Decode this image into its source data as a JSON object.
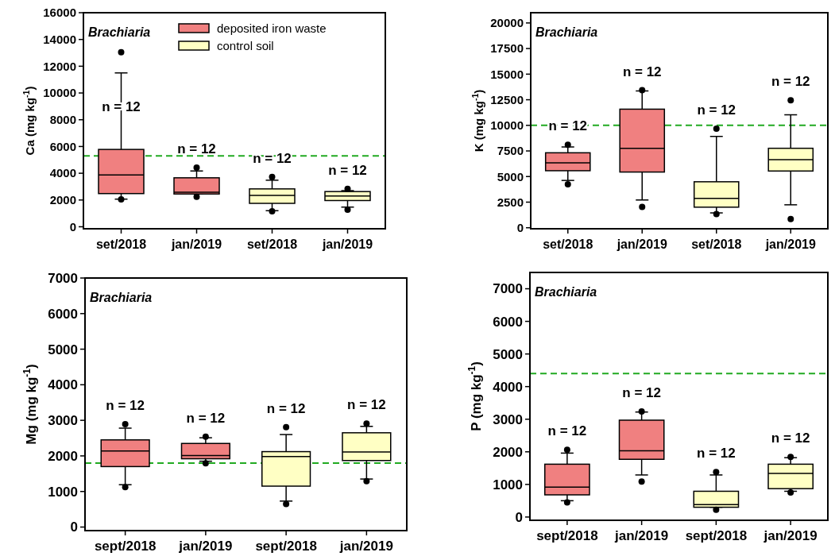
{
  "chart_data": [
    {
      "type": "box",
      "ylabel": "Ca (mg kg$^{-1}$)",
      "categories": [
        "set/2018",
        "jan/2019",
        "set/2018",
        "jan/2019"
      ],
      "ylim": [
        -150,
        16000
      ],
      "yticks": [
        0,
        2000,
        4000,
        6000,
        8000,
        10000,
        12000,
        14000,
        16000
      ],
      "legend": "top right",
      "ref_lines": [
        {
          "axis": "y",
          "value": 5300,
          "color": "#22aa22",
          "line_style": "dashed"
        }
      ],
      "annotations": [
        "Brachiaria",
        "n = 12",
        "n = 12",
        "n = 12",
        "n = 12"
      ],
      "series": [
        {
          "name": "deposited iron waste",
          "color": "#f08080",
          "boxes": [
            {
              "low": 2065,
              "q1": 2480,
              "median": 3870,
              "q3": 5780,
              "high": 11500,
              "outliers": [
                2050,
                13050
              ]
            },
            {
              "low": 2450,
              "q1": 2450,
              "median": 2580,
              "q3": 3660,
              "high": 4170,
              "outliers": [
                2240,
                4420
              ]
            },
            null,
            null
          ]
        },
        {
          "name": "control soil",
          "color": "#ffffc4",
          "boxes": [
            null,
            null,
            {
              "low": 1200,
              "q1": 1750,
              "median": 2340,
              "q3": 2830,
              "high": 3480,
              "outliers": [
                1150,
                3720
              ]
            },
            {
              "low": 1470,
              "q1": 1960,
              "median": 2300,
              "q3": 2630,
              "high": 2700,
              "outliers": [
                1270,
                2830
              ]
            }
          ]
        }
      ]
    },
    {
      "type": "box",
      "ylabel": "K (mg kg$^{-1}$)",
      "categories": [
        "set/2018",
        "jan/2019",
        "set/2018",
        "jan/2019"
      ],
      "ylim": [
        -100,
        21000
      ],
      "yticks": [
        0,
        2500,
        5000,
        7500,
        10000,
        12500,
        15000,
        17500,
        20000
      ],
      "ref_lines": [
        {
          "axis": "y",
          "value": 10000,
          "color": "#22aa22",
          "line_style": "dashed"
        }
      ],
      "annotations": [
        "Brachiaria",
        "n = 12",
        "n = 12",
        "n = 12",
        "n = 12"
      ],
      "series": [
        {
          "color": "#f08080",
          "boxes": [
            {
              "low": 4620,
              "q1": 5570,
              "median": 6340,
              "q3": 7320,
              "high": 7890,
              "outliers": [
                4250,
                8100
              ]
            },
            {
              "low": 2710,
              "q1": 5440,
              "median": 7760,
              "q3": 11580,
              "high": 13360,
              "outliers": [
                2040,
                13430
              ]
            },
            null,
            null
          ]
        },
        {
          "color": "#ffffc4",
          "boxes": [
            null,
            null,
            {
              "low": 1450,
              "q1": 2010,
              "median": 2860,
              "q3": 4490,
              "high": 8920,
              "outliers": [
                1330,
                9670
              ]
            },
            {
              "low": 2240,
              "q1": 5540,
              "median": 6650,
              "q3": 7760,
              "high": 11030,
              "outliers": [
                850,
                12450
              ]
            }
          ]
        }
      ]
    },
    {
      "type": "box",
      "ylabel": "Mg (mg kg$^{-1}$)",
      "categories": [
        "sept/2018",
        "jan/2019",
        "sept/2018",
        "jan/2019"
      ],
      "ylim": [
        -100,
        7000
      ],
      "yticks": [
        0,
        1000,
        2000,
        3000,
        4000,
        5000,
        6000,
        7000
      ],
      "ref_lines": [
        {
          "axis": "y",
          "value": 1800,
          "color": "#22aa22",
          "line_style": "dashed"
        }
      ],
      "annotations": [
        "Brachiaria",
        "n = 12",
        "n = 12",
        "n = 12",
        "n = 12"
      ],
      "series": [
        {
          "color": "#f08080",
          "boxes": [
            {
              "low": 1190,
              "q1": 1700,
              "median": 2140,
              "q3": 2450,
              "high": 2780,
              "outliers": [
                1120,
                2890
              ]
            },
            {
              "low": 1850,
              "q1": 1920,
              "median": 2010,
              "q3": 2350,
              "high": 2510,
              "outliers": [
                1790,
                2540
              ]
            },
            null,
            null
          ]
        },
        {
          "color": "#ffffc4",
          "boxes": [
            null,
            null,
            {
              "low": 730,
              "q1": 1150,
              "median": 1980,
              "q3": 2120,
              "high": 2600,
              "outliers": [
                650,
                2810
              ]
            },
            {
              "low": 1350,
              "q1": 1870,
              "median": 2110,
              "q3": 2650,
              "high": 2830,
              "outliers": [
                1290,
                2910
              ]
            }
          ]
        }
      ]
    },
    {
      "type": "box",
      "ylabel": "P (mg kg$^{-1}$)",
      "categories": [
        "sept/2018",
        "jan/2019",
        "sept/2018",
        "jan/2019"
      ],
      "ylim": [
        -100,
        7500
      ],
      "yticks": [
        0,
        1000,
        2000,
        3000,
        4000,
        5000,
        6000,
        7000
      ],
      "ref_lines": [
        {
          "axis": "y",
          "value": 4400,
          "color": "#22aa22",
          "line_style": "dashed"
        }
      ],
      "annotations": [
        "Brachiaria",
        "n = 12",
        "n = 12",
        "n = 12",
        "n = 12"
      ],
      "series": [
        {
          "color": "#f08080",
          "boxes": [
            {
              "low": 500,
              "q1": 680,
              "median": 920,
              "q3": 1620,
              "high": 1960,
              "outliers": [
                450,
                2060
              ]
            },
            {
              "low": 1290,
              "q1": 1770,
              "median": 2030,
              "q3": 2970,
              "high": 3220,
              "outliers": [
                1090,
                3240
              ]
            },
            null,
            null
          ]
        },
        {
          "color": "#ffffc4",
          "boxes": [
            null,
            null,
            {
              "low": 300,
              "q1": 300,
              "median": 380,
              "q3": 790,
              "high": 1290,
              "outliers": [
                220,
                1380
              ]
            },
            {
              "low": 790,
              "q1": 870,
              "median": 1340,
              "q3": 1620,
              "high": 1820,
              "outliers": [
                750,
                1840
              ]
            }
          ]
        }
      ]
    }
  ]
}
